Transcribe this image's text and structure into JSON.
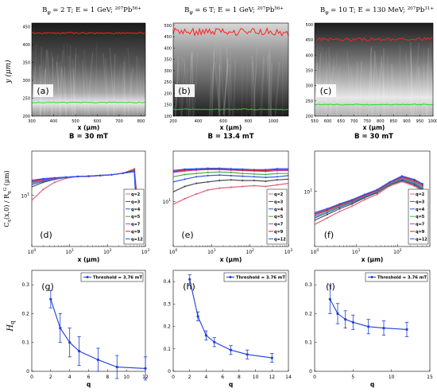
{
  "figure": {
    "row1": {
      "ylabel": "y (μm)",
      "bfield_prefix": "B = ",
      "panels": [
        {
          "title": "Bφ = 2 T; E = 1 GeV; 207Pb56+",
          "title_parts": {
            "pre": "B",
            "sub": "φ",
            "mid": " = 2 T; E = 1 GeV; ",
            "sup1": "207",
            "ion": "Pb",
            "sup2": "56+"
          },
          "letter": "(a)",
          "xlabel": "x (μm)",
          "bfield": "30 mT",
          "xticks": [
            "300",
            "400",
            "500",
            "600",
            "700",
            "800"
          ],
          "yticks": [
            "200",
            "250",
            "300",
            "350",
            "400",
            "450"
          ],
          "xlim": [
            300,
            820
          ],
          "ylim": [
            200,
            460
          ],
          "red_level": 432,
          "green_level": 238
        },
        {
          "title": "Bφ = 6 T; E = 1 GeV; 207Pb56+",
          "title_parts": {
            "pre": "B",
            "sub": "φ",
            "mid": " = 6 T; E = 1 GeV; ",
            "sup1": "207",
            "ion": "Pb",
            "sup2": "56+"
          },
          "letter": "(b)",
          "xlabel": "x (μm)",
          "bfield": "13.4 mT",
          "xticks": [
            "200",
            "400",
            "600",
            "800",
            "1000"
          ],
          "yticks": [
            "100",
            "150",
            "200",
            "250",
            "300",
            "350",
            "400",
            "450",
            "500"
          ],
          "xlim": [
            200,
            1120
          ],
          "ylim": [
            100,
            510
          ],
          "red_level": 470,
          "green_level": 130
        },
        {
          "title": "Bφ = 10 T; E = 130 MeV; 207Pb31+",
          "title_parts": {
            "pre": "B",
            "sub": "φ",
            "mid": " = 10 T; E = 130 MeV; ",
            "sup1": "207",
            "ion": "Pb",
            "sup2": "31+"
          },
          "letter": "(c)",
          "xlabel": "x (μm)",
          "bfield": "30 mT",
          "xticks": [
            "550",
            "600",
            "650",
            "700",
            "750",
            "800",
            "850",
            "900",
            "950",
            "1000"
          ],
          "yticks": [
            "200",
            "250",
            "300",
            "350",
            "400",
            "450",
            "500"
          ],
          "xlim": [
            550,
            1000
          ],
          "ylim": [
            200,
            505
          ],
          "red_level": 452,
          "green_level": 238
        }
      ]
    },
    "row2": {
      "ylabel": "Cq(x,0) / RqG (μm)",
      "ylabel_parts": {
        "c": "C",
        "csub": "q",
        "mid": "(x,0) / R",
        "rsub": "q",
        "rsup": "G",
        "unit": " (μm)"
      },
      "xlabel": "x (μm)",
      "xticks": [
        "10",
        "10",
        "10",
        "10"
      ],
      "xtick_exps": [
        "0",
        "1",
        "2",
        "3"
      ],
      "ytick": "10",
      "ytick_exp": "1",
      "legend": [
        "q=2",
        "q=3",
        "q=4",
        "q=5",
        "q=7",
        "q=9",
        "q=12"
      ],
      "series_colors": [
        "#e0607a",
        "#4a4a55",
        "#3358d6",
        "#40b040",
        "#a64ac8",
        "#e81a1a",
        "#2255ff"
      ],
      "panels": [
        {
          "letter": "(d)"
        },
        {
          "letter": "(e)"
        },
        {
          "letter": "(f)"
        }
      ]
    },
    "row3": {
      "ylabel": "Hq",
      "xlabel": "q",
      "legend": "Threshold = 3.76 mT",
      "color": "#1f3fd6",
      "panels": [
        {
          "letter": "(g)",
          "xticks": [
            "0",
            "2",
            "4",
            "6",
            "8",
            "10",
            "12"
          ],
          "yticks": [
            "0",
            "0.1",
            "0.2",
            "0.3"
          ],
          "xlim": [
            0,
            12
          ],
          "ylim": [
            0,
            0.35
          ]
        },
        {
          "letter": "(h)",
          "xticks": [
            "0",
            "2",
            "4",
            "6",
            "8",
            "10",
            "12",
            "14"
          ],
          "yticks": [
            "0",
            "0.1",
            "0.2",
            "0.3",
            "0.4"
          ],
          "xlim": [
            0,
            14
          ],
          "ylim": [
            0,
            0.45
          ]
        },
        {
          "letter": "(i)",
          "xticks": [
            "0",
            "5",
            "10",
            "15"
          ],
          "yticks": [
            "0",
            "0.1",
            "0.2",
            "0.3"
          ],
          "xlim": [
            0,
            15
          ],
          "ylim": [
            0,
            0.35
          ]
        }
      ]
    }
  },
  "chart_data": [
    {
      "type": "line",
      "title": "Bφ = 2 T; E = 1 GeV; 207Pb56+",
      "xlabel": "x (μm)",
      "ylabel": "y (μm)",
      "xlim": [
        300,
        820
      ],
      "ylim": [
        200,
        460
      ],
      "series": [
        {
          "color": "#ff2020",
          "x": [
            300,
            820
          ],
          "y": [
            432,
            430
          ]
        },
        {
          "color": "#20e020",
          "x": [
            300,
            820
          ],
          "y": [
            238,
            240
          ]
        }
      ]
    },
    {
      "type": "line",
      "title": "Bφ = 6 T; E = 1 GeV; 207Pb56+",
      "xlabel": "x (μm)",
      "ylabel": "y (μm)",
      "xlim": [
        200,
        1120
      ],
      "ylim": [
        100,
        510
      ],
      "series": [
        {
          "color": "#ff2020",
          "x": [
            200,
            1120
          ],
          "y": [
            470,
            465
          ]
        },
        {
          "color": "#20e020",
          "x": [
            200,
            1120
          ],
          "y": [
            130,
            135
          ]
        }
      ]
    },
    {
      "type": "line",
      "title": "Bφ = 10 T; E = 130 MeV; 207Pb31+",
      "xlabel": "x (μm)",
      "ylabel": "y (μm)",
      "xlim": [
        550,
        1000
      ],
      "ylim": [
        200,
        505
      ],
      "series": [
        {
          "color": "#ff2020",
          "x": [
            550,
            1000
          ],
          "y": [
            452,
            455
          ]
        },
        {
          "color": "#20e020",
          "x": [
            550,
            1000
          ],
          "y": [
            238,
            240
          ]
        }
      ]
    },
    {
      "type": "line",
      "xlabel": "x (μm)",
      "ylabel": "Cq(x,0) / RqG (μm)",
      "log_scale": "both",
      "xlim": [
        1,
        1000
      ],
      "series": [
        {
          "name": "q=2",
          "x": [
            1,
            2,
            4,
            8,
            16,
            32,
            64,
            128,
            256,
            512,
            600
          ],
          "y": [
            8.5,
            12,
            15,
            17,
            18,
            18,
            18.5,
            19,
            20,
            23,
            10
          ]
        },
        {
          "name": "q=3",
          "x": [
            1,
            2,
            4,
            8,
            16,
            32,
            64,
            128,
            256,
            512,
            600
          ],
          "y": [
            13,
            15,
            16.5,
            17.5,
            18,
            18.2,
            18.6,
            19,
            20,
            22,
            8
          ]
        },
        {
          "name": "q=4",
          "x": [
            1,
            2,
            4,
            8,
            16,
            32,
            64,
            128,
            256,
            512,
            600
          ],
          "y": [
            14,
            15.5,
            16.5,
            17.5,
            18,
            18.2,
            18.6,
            19,
            20,
            21,
            7
          ]
        },
        {
          "name": "q=5",
          "x": [
            1,
            2,
            4,
            8,
            16,
            32,
            64,
            128,
            256,
            512,
            600
          ],
          "y": [
            14.5,
            16,
            17,
            17.5,
            18,
            18.2,
            18.6,
            19,
            20,
            21,
            6
          ]
        },
        {
          "name": "q=7",
          "x": [
            1,
            2,
            4,
            8,
            16,
            32,
            64,
            128,
            256,
            512,
            600
          ],
          "y": [
            15,
            16,
            17,
            17.6,
            18,
            18.2,
            18.6,
            19,
            20,
            21,
            5
          ]
        },
        {
          "name": "q=9",
          "x": [
            1,
            2,
            4,
            8,
            16,
            32,
            64,
            128,
            256,
            512,
            600
          ],
          "y": [
            15.5,
            16.5,
            17.2,
            17.6,
            18,
            18.2,
            18.6,
            19,
            20,
            21,
            4.5
          ]
        },
        {
          "name": "q=12",
          "x": [
            1,
            2,
            4,
            8,
            16,
            32,
            64,
            128,
            256,
            512,
            600
          ],
          "y": [
            16,
            16.8,
            17.3,
            17.7,
            18,
            18.2,
            18.6,
            19,
            20,
            21,
            4
          ]
        }
      ]
    },
    {
      "type": "line",
      "xlabel": "x (μm)",
      "ylabel": "Cq(x,0) / RqG (μm)",
      "log_scale": "both",
      "xlim": [
        1,
        1000
      ],
      "series": [
        {
          "name": "q=2",
          "x": [
            1,
            2,
            4,
            8,
            16,
            32,
            64,
            128,
            256,
            512,
            1000
          ],
          "y": [
            9,
            11,
            13,
            15,
            16,
            16.5,
            17,
            17.5,
            17,
            18,
            19
          ]
        },
        {
          "name": "q=3",
          "x": [
            1,
            2,
            4,
            8,
            16,
            32,
            64,
            128,
            256,
            512,
            1000
          ],
          "y": [
            14,
            17,
            19,
            20,
            21,
            21.5,
            21,
            21,
            20.5,
            21.5,
            22
          ]
        },
        {
          "name": "q=4",
          "x": [
            1,
            2,
            4,
            8,
            16,
            32,
            64,
            128,
            256,
            512,
            1000
          ],
          "y": [
            20,
            22,
            24,
            25,
            25.5,
            25,
            24.5,
            24,
            23.5,
            24,
            25
          ]
        },
        {
          "name": "q=5",
          "x": [
            1,
            2,
            4,
            8,
            16,
            32,
            64,
            128,
            256,
            512,
            1000
          ],
          "y": [
            24,
            26,
            27,
            28,
            28.5,
            28,
            27,
            26.5,
            26,
            27,
            27
          ]
        },
        {
          "name": "q=7",
          "x": [
            1,
            2,
            4,
            8,
            16,
            32,
            64,
            128,
            256,
            512,
            1000
          ],
          "y": [
            28,
            29.5,
            30.5,
            31,
            31,
            30.5,
            30,
            29.5,
            29,
            30,
            30
          ]
        },
        {
          "name": "q=9",
          "x": [
            1,
            2,
            4,
            8,
            16,
            32,
            64,
            128,
            256,
            512,
            1000
          ],
          "y": [
            29,
            30.5,
            31,
            31.5,
            31.5,
            31,
            30.5,
            30,
            30,
            31,
            31
          ]
        },
        {
          "name": "q=12",
          "x": [
            1,
            2,
            4,
            8,
            16,
            32,
            64,
            128,
            256,
            512,
            1000
          ],
          "y": [
            30,
            31.5,
            32,
            32.5,
            32.5,
            32,
            31.5,
            31,
            31,
            32,
            32
          ]
        }
      ]
    },
    {
      "type": "line",
      "xlabel": "x (μm)",
      "ylabel": "Cq(x,0) / RqG (μm)",
      "log_scale": "both",
      "xlim": [
        1,
        600
      ],
      "series": [
        {
          "name": "q=2",
          "x": [
            1,
            2,
            4,
            8,
            16,
            32,
            64,
            128,
            256,
            400
          ],
          "y": [
            3.2,
            4,
            5,
            6,
            7.5,
            9,
            12,
            14,
            12,
            10
          ]
        },
        {
          "name": "q=3",
          "x": [
            1,
            2,
            4,
            8,
            16,
            32,
            64,
            128,
            256,
            400
          ],
          "y": [
            3.7,
            4.5,
            5.5,
            6.5,
            8,
            9.5,
            12.5,
            14.5,
            12.5,
            10.5
          ]
        },
        {
          "name": "q=4",
          "x": [
            1,
            2,
            4,
            8,
            16,
            32,
            64,
            128,
            256,
            400
          ],
          "y": [
            4,
            4.8,
            5.8,
            6.8,
            8.2,
            9.8,
            12.8,
            15,
            13,
            11
          ]
        },
        {
          "name": "q=5",
          "x": [
            1,
            2,
            4,
            8,
            16,
            32,
            64,
            128,
            256,
            400
          ],
          "y": [
            4.2,
            5,
            6,
            7,
            8.4,
            10,
            13,
            15.5,
            13.5,
            11.5
          ]
        },
        {
          "name": "q=7",
          "x": [
            1,
            2,
            4,
            8,
            16,
            32,
            64,
            128,
            256,
            400
          ],
          "y": [
            4.4,
            5.2,
            6.2,
            7.2,
            8.6,
            10.2,
            13.4,
            16,
            14,
            12
          ]
        },
        {
          "name": "q=9",
          "x": [
            1,
            2,
            4,
            8,
            16,
            32,
            64,
            128,
            256,
            400
          ],
          "y": [
            4.6,
            5.3,
            6.3,
            7.3,
            8.8,
            10.4,
            13.6,
            16.5,
            14.5,
            12.5
          ]
        },
        {
          "name": "q=12",
          "x": [
            1,
            2,
            4,
            8,
            16,
            32,
            64,
            128,
            256,
            400
          ],
          "y": [
            4.8,
            5.5,
            6.5,
            7.5,
            9,
            10.6,
            13.8,
            17,
            15,
            13
          ]
        }
      ]
    },
    {
      "type": "line",
      "xlabel": "q",
      "ylabel": "Hq",
      "xlim": [
        0,
        12
      ],
      "ylim": [
        0,
        0.35
      ],
      "series": [
        {
          "name": "Threshold = 3.76 mT",
          "x": [
            2,
            3,
            4,
            5,
            7,
            9,
            12
          ],
          "y": [
            0.25,
            0.15,
            0.1,
            0.07,
            0.04,
            0.015,
            0.01
          ],
          "err": [
            0.03,
            0.05,
            0.05,
            0.05,
            0.04,
            0.04,
            0.04
          ]
        }
      ]
    },
    {
      "type": "line",
      "xlabel": "q",
      "ylabel": "Hq",
      "xlim": [
        0,
        14
      ],
      "ylim": [
        0,
        0.45
      ],
      "series": [
        {
          "name": "Threshold = 3.76 mT",
          "x": [
            2,
            3,
            4,
            5,
            7,
            9,
            12
          ],
          "y": [
            0.41,
            0.245,
            0.16,
            0.13,
            0.095,
            0.075,
            0.06
          ],
          "err": [
            0.02,
            0.02,
            0.02,
            0.02,
            0.02,
            0.02,
            0.02
          ]
        }
      ]
    },
    {
      "type": "line",
      "xlabel": "q",
      "ylabel": "Hq",
      "xlim": [
        0,
        15
      ],
      "ylim": [
        0,
        0.35
      ],
      "series": [
        {
          "name": "Threshold = 3.76 mT",
          "x": [
            2,
            3,
            4,
            5,
            7,
            9,
            12
          ],
          "y": [
            0.25,
            0.2,
            0.18,
            0.17,
            0.155,
            0.15,
            0.145
          ],
          "err": [
            0.05,
            0.035,
            0.03,
            0.025,
            0.025,
            0.025,
            0.025
          ]
        }
      ]
    }
  ]
}
